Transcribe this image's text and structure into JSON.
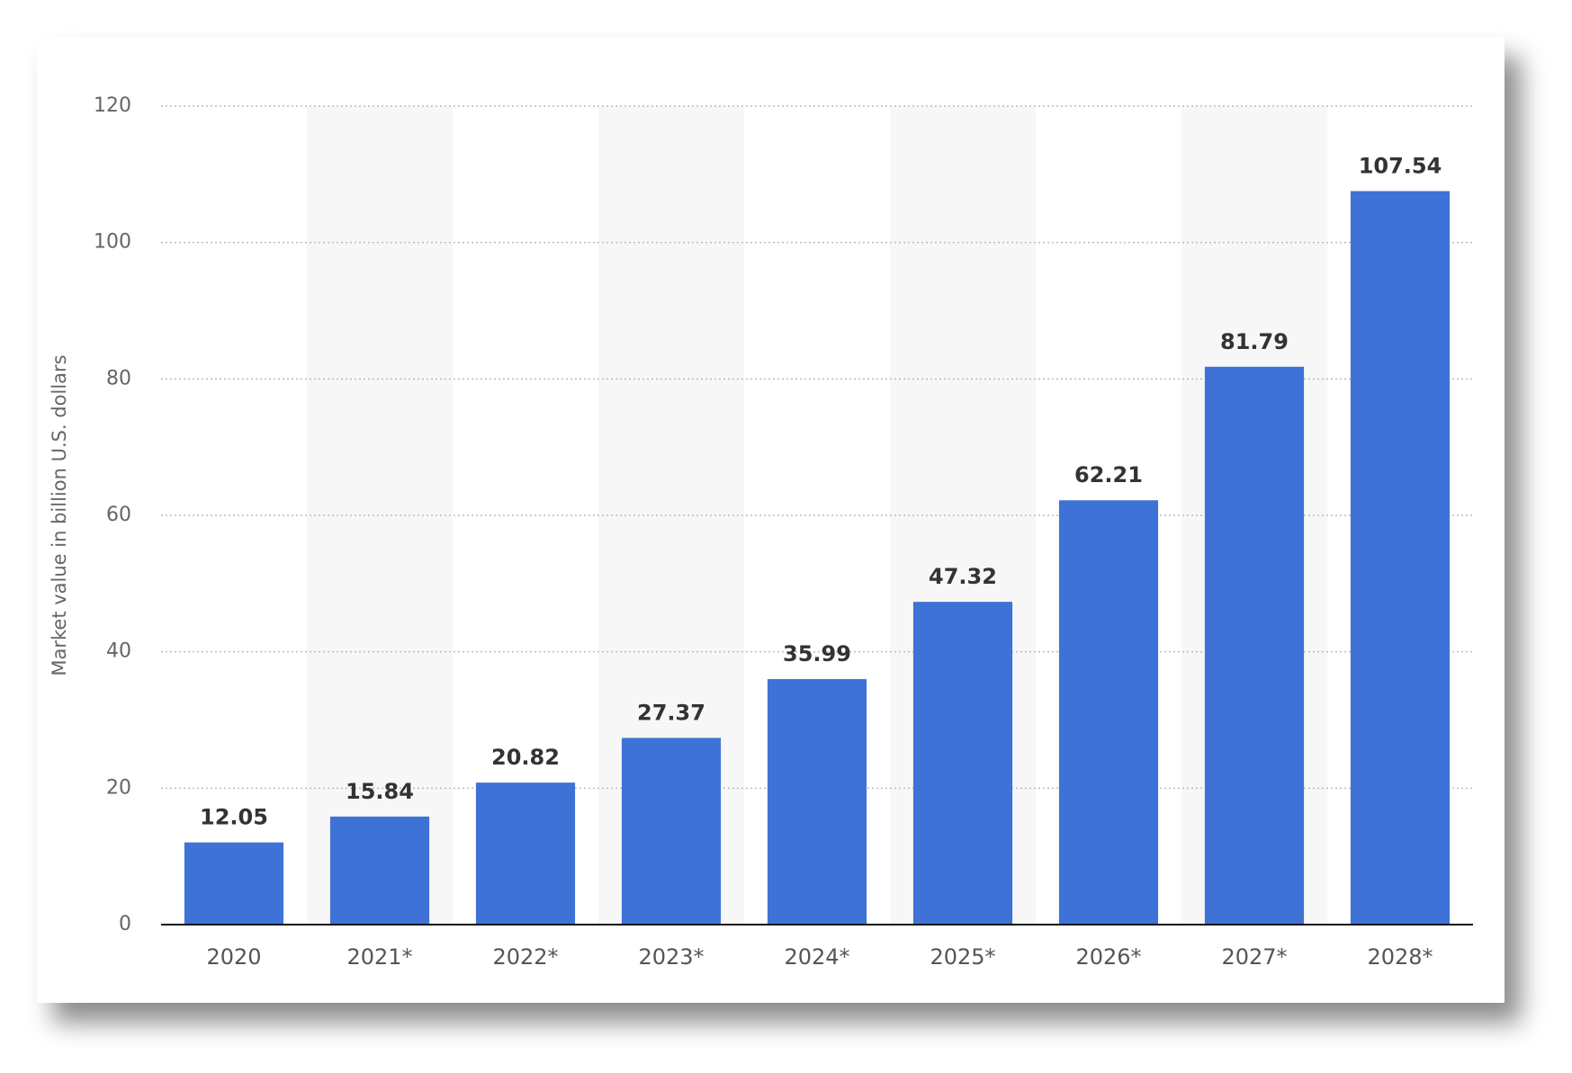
{
  "chart_data": {
    "type": "bar",
    "y_label": "Market value in billion U.S. dollars",
    "categories": [
      "2020",
      "2021*",
      "2022*",
      "2023*",
      "2024*",
      "2025*",
      "2026*",
      "2027*",
      "2028*"
    ],
    "values": [
      12.05,
      15.84,
      20.82,
      27.37,
      35.99,
      47.32,
      62.21,
      81.79,
      107.54
    ],
    "color": "#3f72d6",
    "ylim": [
      0,
      120
    ],
    "yticks": [
      0,
      20,
      40,
      60,
      80,
      100,
      120
    ],
    "grid": true
  }
}
